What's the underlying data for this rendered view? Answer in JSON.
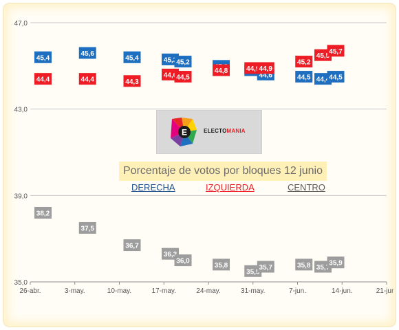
{
  "chart_data": {
    "type": "scatter",
    "title": "Porcentaje de votos por bloques 12 junio",
    "xlabel": "",
    "ylabel": "",
    "x_ticks": [
      "26-abr.",
      "3-may.",
      "10-may.",
      "17-may.",
      "24-may.",
      "31-may.",
      "7-jun.",
      "14-jun.",
      "21-jun."
    ],
    "xlim": [
      "2016-04-26",
      "2016-06-21"
    ],
    "ylim": [
      35.0,
      47.0
    ],
    "y_ticks": [
      "35,0",
      "39,0",
      "43,0",
      "47,0"
    ],
    "grid": "horizontal",
    "series": [
      {
        "name": "DERECHA",
        "color": "#1f6fc0",
        "points": [
          {
            "x": "2016-04-28",
            "y": 45.4,
            "label": "45,4"
          },
          {
            "x": "2016-05-05",
            "y": 45.6,
            "label": "45,6"
          },
          {
            "x": "2016-05-12",
            "y": 45.4,
            "label": "45,4"
          },
          {
            "x": "2016-05-18",
            "y": 45.3,
            "label": "45,3"
          },
          {
            "x": "2016-05-20",
            "y": 45.2,
            "label": "45,2"
          },
          {
            "x": "2016-05-26",
            "y": 45.0,
            "label": "45,0"
          },
          {
            "x": "2016-05-31",
            "y": 44.8,
            "label": "44,8"
          },
          {
            "x": "2016-06-02",
            "y": 44.6,
            "label": "44,6"
          },
          {
            "x": "2016-06-08",
            "y": 44.5,
            "label": "44,5"
          },
          {
            "x": "2016-06-11",
            "y": 44.4,
            "label": "44,4"
          },
          {
            "x": "2016-06-13",
            "y": 44.5,
            "label": "44,5"
          }
        ]
      },
      {
        "name": "IZQUIERDA",
        "color": "#ee1c24",
        "points": [
          {
            "x": "2016-04-28",
            "y": 44.4,
            "label": "44,4"
          },
          {
            "x": "2016-05-05",
            "y": 44.4,
            "label": "44,4"
          },
          {
            "x": "2016-05-12",
            "y": 44.3,
            "label": "44,3"
          },
          {
            "x": "2016-05-18",
            "y": 44.6,
            "label": "44,6"
          },
          {
            "x": "2016-05-20",
            "y": 44.5,
            "label": "44,5"
          },
          {
            "x": "2016-05-26",
            "y": 44.8,
            "label": "44,8"
          },
          {
            "x": "2016-05-31",
            "y": 44.9,
            "label": "44,9"
          },
          {
            "x": "2016-06-02",
            "y": 44.9,
            "label": "44,9"
          },
          {
            "x": "2016-06-08",
            "y": 45.2,
            "label": "45,2"
          },
          {
            "x": "2016-06-11",
            "y": 45.5,
            "label": "45,5"
          },
          {
            "x": "2016-06-13",
            "y": 45.7,
            "label": "45,7"
          }
        ]
      },
      {
        "name": "CENTRO",
        "color": "#9d9d9d",
        "points": [
          {
            "x": "2016-04-28",
            "y": 38.2,
            "label": "38,2"
          },
          {
            "x": "2016-05-05",
            "y": 37.5,
            "label": "37,5"
          },
          {
            "x": "2016-05-12",
            "y": 36.7,
            "label": "36,7"
          },
          {
            "x": "2016-05-18",
            "y": 36.3,
            "label": "36,3"
          },
          {
            "x": "2016-05-20",
            "y": 36.0,
            "label": "36,0"
          },
          {
            "x": "2016-05-26",
            "y": 35.8,
            "label": "35,8"
          },
          {
            "x": "2016-05-31",
            "y": 35.5,
            "label": "35,5"
          },
          {
            "x": "2016-06-02",
            "y": 35.7,
            "label": "35,7"
          },
          {
            "x": "2016-06-08",
            "y": 35.8,
            "label": "35,8"
          },
          {
            "x": "2016-06-11",
            "y": 35.7,
            "label": "35,7"
          },
          {
            "x": "2016-06-13",
            "y": 35.9,
            "label": "35,9"
          }
        ]
      }
    ]
  },
  "logo": {
    "name": "ELECTOMANIA",
    "word_parts": [
      "ELECTO",
      "MANIA"
    ],
    "letter": "E",
    "colors": [
      "#e8262a",
      "#f6a01a",
      "#ffd200",
      "#2fa84f",
      "#1f6fc0",
      "#7b3fa0",
      "#e4007c"
    ]
  },
  "legend": {
    "derecha": {
      "label": "DERECHA",
      "color": "#1f4e8c"
    },
    "izquierda": {
      "label": "IZQUIERDA",
      "color": "#ee1c24"
    },
    "centro": {
      "label": "CENTRO",
      "color": "#5a5a5a"
    }
  }
}
